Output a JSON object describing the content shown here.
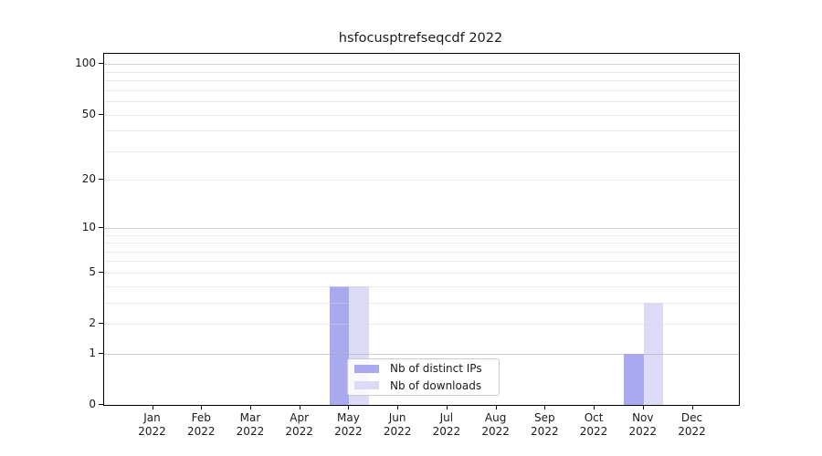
{
  "chart_data": {
    "type": "bar",
    "title": "hsfocusptrefseqcdf 2022",
    "categories": [
      "Jan 2022",
      "Feb 2022",
      "Mar 2022",
      "Apr 2022",
      "May 2022",
      "Jun 2022",
      "Jul 2022",
      "Aug 2022",
      "Sep 2022",
      "Oct 2022",
      "Nov 2022",
      "Dec 2022"
    ],
    "series": [
      {
        "name": "Nb of distinct IPs",
        "color": "#a9a9f0",
        "values": [
          0,
          0,
          0,
          0,
          4,
          0,
          0,
          0,
          0,
          0,
          1,
          0
        ]
      },
      {
        "name": "Nb of downloads",
        "color": "#dbdbf7",
        "values": [
          0,
          0,
          0,
          0,
          4,
          0,
          0,
          0,
          0,
          0,
          3,
          0
        ]
      }
    ],
    "xlabel": "",
    "ylabel": "",
    "yscale": "log1p",
    "ylim": [
      0,
      115
    ],
    "yticks": [
      0,
      1,
      2,
      5,
      10,
      20,
      50,
      100
    ],
    "gridlines_major": [
      1,
      10,
      100
    ],
    "gridlines_minor": [
      2,
      3,
      4,
      5,
      6,
      7,
      8,
      9,
      20,
      30,
      40,
      50,
      60,
      70,
      80,
      90
    ],
    "grid": "horizontal",
    "legend_position": "lower center",
    "colors": {
      "axis": "#000000",
      "grid_major": "#d2d2d2",
      "grid_minor": "#ececec",
      "background": "#ffffff",
      "legend_border": "#cccccc"
    }
  }
}
